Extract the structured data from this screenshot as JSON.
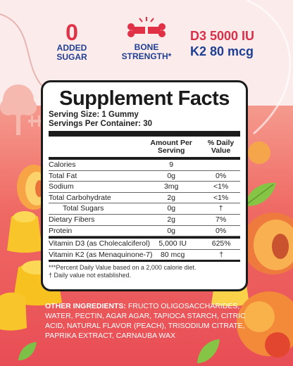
{
  "badges": {
    "sugar": {
      "symbol": "0",
      "line1": "ADDED",
      "line2": "SUGAR"
    },
    "bone": {
      "line1": "BONE",
      "line2": "STRENGTH*"
    }
  },
  "dose": {
    "d3": "D3 5000 IU",
    "k2": "K2 80 mcg"
  },
  "facts": {
    "title": "Supplement Facts",
    "serving_size": "Serving Size: 1 Gummy",
    "servings_per_container": "Servings Per Container: 30",
    "header_amount_1": "Amount Per",
    "header_amount_2": "Serving",
    "header_dv_1": "% Daily",
    "header_dv_2": "Value",
    "rows": [
      {
        "name": "Calories",
        "amount": "9",
        "dv": ""
      },
      {
        "name": "Total Fat",
        "amount": "0g",
        "dv": "0%"
      },
      {
        "name": "Sodium",
        "amount": "3mg",
        "dv": "<1%"
      },
      {
        "name": "Total Carbohydrate",
        "amount": "2g",
        "dv": "<1%"
      },
      {
        "name": "Total Sugars",
        "amount": "0g",
        "dv": "†"
      },
      {
        "name": "Dietary Fibers",
        "amount": "2g",
        "dv": "7%"
      },
      {
        "name": "Protein",
        "amount": "0g",
        "dv": "0%"
      },
      {
        "name": "Vitamin D3 (as Cholecalciferol)",
        "amount": "5,000 IU",
        "dv": "625%"
      },
      {
        "name": "Vitamin K2 (as Menaquinone-7)",
        "amount": "80 mcg",
        "dv": "†"
      }
    ],
    "footnote_1": "***Percent Daily Value based on a 2,000 calorie diet.",
    "footnote_2": "† Daily value not established."
  },
  "ingredients": {
    "label": "OTHER INGREDIENTS:",
    "text": " FRUCTO OLIGOSACCHARIDES, WATER, PECTIN, AGAR AGAR, TAPIOCA STARCH, CITRIC ACID, NATURAL FLAVOR (PEACH), TRISODIUM CITRATE, PAPRIKA EXTRACT, CARNAUBA WAX"
  },
  "colors": {
    "brand_red": "#d9304a",
    "brand_blue": "#1f3f93",
    "background_coral": "#ef6a64",
    "gummy_yellow": "#f8c62a"
  },
  "icons": [
    "bone-strength-icon",
    "tree-icon",
    "peach-icon",
    "leaf-icon",
    "gummy-icon"
  ]
}
